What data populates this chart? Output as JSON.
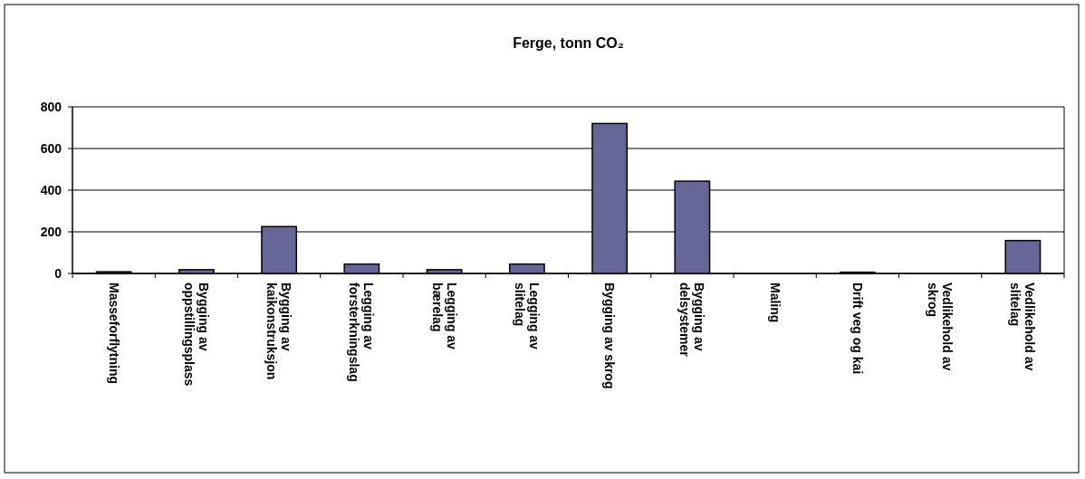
{
  "chart_data": {
    "type": "bar",
    "title": "Ferge, tonn CO₂",
    "categories": [
      "Masseforflytning",
      "Bygging av oppstillingsplass",
      "Bygging av kaikonstruksjon",
      "Legging av forsterkningslag",
      "Legging av bærelag",
      "Legging av slitelag",
      "Bygging av skrog",
      "Bygging av delsystemer",
      "Maling",
      "Drift veg og kai",
      "Vedlikehold av skrog",
      "Vedlikehold av slitelag"
    ],
    "values": [
      8,
      18,
      225,
      45,
      18,
      45,
      720,
      443,
      0,
      6,
      0,
      158
    ],
    "color": "#666699",
    "ylim": [
      0,
      800
    ],
    "yticks": [
      0,
      200,
      400,
      600,
      800
    ],
    "grid": "y"
  }
}
